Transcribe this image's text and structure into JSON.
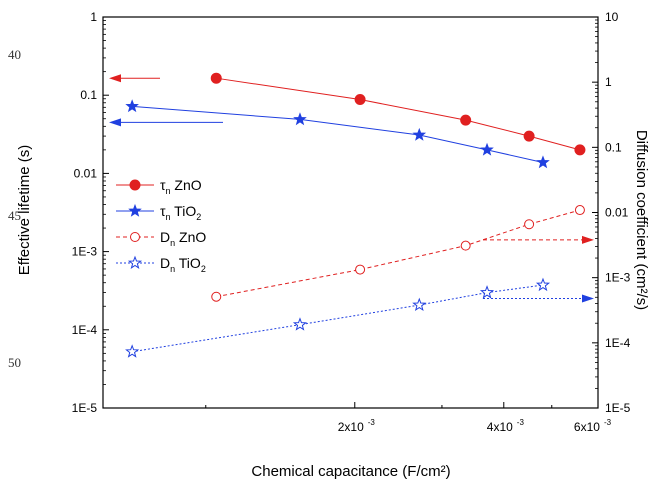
{
  "margin_numbers": [
    "40",
    "45",
    "50"
  ],
  "chart_data": {
    "type": "line",
    "xlabel": "Chemical capacitance (F/cm²)",
    "xscale": "log",
    "xlim": [
      0.00062,
      0.0062
    ],
    "x_ticks": [
      {
        "value": 0.002,
        "label": "2x10",
        "exp": "-3"
      },
      {
        "value": 0.004,
        "label": "4x10",
        "exp": "-3"
      },
      {
        "value": 0.006,
        "label": "6x10",
        "exp": "-3"
      }
    ],
    "y_left": {
      "label": "Effective lifetime (s)",
      "scale": "log",
      "ylim": [
        1e-05,
        1
      ],
      "tick_labels": [
        "1E-5",
        "1E-4",
        "1E-3",
        "0.01",
        "0.1",
        "1"
      ]
    },
    "y_right": {
      "label": "Diffusion coefficient (cm²/s)",
      "scale": "log",
      "ylim": [
        1e-05,
        10
      ],
      "tick_labels": [
        "1E-5",
        "1E-4",
        "1E-3",
        "0.01",
        "0.1",
        "1",
        "10"
      ]
    },
    "series": [
      {
        "name": "τn ZnO",
        "display": {
          "main": "τ",
          "sub": "n",
          "rest": " ZnO"
        },
        "axis": "left",
        "color": "#e02020",
        "marker": "filled-circle",
        "line": "solid",
        "x": [
          0.00105,
          0.00205,
          0.00335,
          0.0045,
          0.0057
        ],
        "y": [
          0.165,
          0.088,
          0.048,
          0.03,
          0.02
        ]
      },
      {
        "name": "τn TiO2",
        "display": {
          "main": "τ",
          "sub": "n",
          "rest": " TiO",
          "sub2": "2"
        },
        "axis": "left",
        "color": "#2040e0",
        "marker": "filled-star",
        "line": "solid",
        "x": [
          0.00071,
          0.00155,
          0.0027,
          0.0037,
          0.0048
        ],
        "y": [
          0.072,
          0.049,
          0.031,
          0.02,
          0.0138
        ]
      },
      {
        "name": "Dn ZnO",
        "display": {
          "main": "D",
          "sub": "n",
          "rest": " ZnO"
        },
        "axis": "right",
        "color": "#e02020",
        "marker": "open-circle",
        "line": "dashed",
        "x": [
          0.00105,
          0.00205,
          0.00335,
          0.0045,
          0.0057
        ],
        "y": [
          0.00051,
          0.00133,
          0.0031,
          0.0066,
          0.0109
        ]
      },
      {
        "name": "Dn TiO2",
        "display": {
          "main": "D",
          "sub": "n",
          "rest": " TiO",
          "sub2": "2"
        },
        "axis": "right",
        "color": "#2040e0",
        "marker": "open-star",
        "line": "dotted",
        "x": [
          0.00071,
          0.00155,
          0.0027,
          0.0037,
          0.0048
        ],
        "y": [
          7.3e-05,
          0.00019,
          0.00038,
          0.00059,
          0.00077
        ]
      }
    ],
    "annotations": [
      {
        "type": "arrow",
        "direction": "left",
        "axis": "left",
        "y": 0.165,
        "color": "#e02020",
        "style": "solid"
      },
      {
        "type": "arrow",
        "direction": "left",
        "axis": "left",
        "y": 0.045,
        "color": "#2040e0",
        "style": "solid"
      },
      {
        "type": "arrow",
        "direction": "right",
        "axis": "right",
        "y": 0.0038,
        "color": "#e02020",
        "style": "dashed"
      },
      {
        "type": "arrow",
        "direction": "right",
        "axis": "right",
        "y": 0.00048,
        "color": "#2040e0",
        "style": "dotted"
      }
    ],
    "legend": "left"
  }
}
